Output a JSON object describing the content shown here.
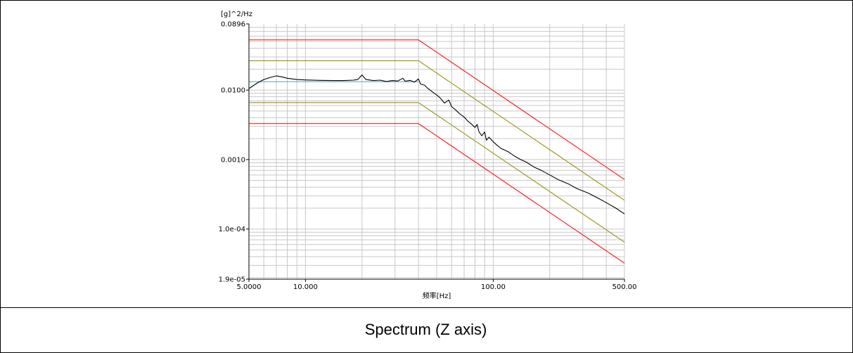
{
  "chart_data": {
    "type": "line",
    "xscale": "log",
    "yscale": "log",
    "xlim": [
      5.0,
      500.0
    ],
    "ylim": [
      1.9e-05,
      0.0896
    ],
    "x_tick_labels": [
      "5.0000",
      "10.000",
      "100.00",
      "500.00"
    ],
    "x_tick_values": [
      5,
      10,
      100,
      500
    ],
    "y_tick_labels": [
      "0.0896",
      "0.0100",
      "0.0010",
      "1.0e-04",
      "1.9e-05"
    ],
    "y_tick_values": [
      0.0896,
      0.01,
      0.001,
      0.0001,
      1.9e-05
    ],
    "xlabel": "频率[Hz]",
    "ylabel": "[g]^2/Hz",
    "grid": true,
    "series": [
      {
        "color": "#ff2020",
        "points": [
          [
            5,
            0.0528
          ],
          [
            40,
            0.0528
          ],
          [
            500,
            0.000517
          ]
        ]
      },
      {
        "color": "#a09a20",
        "points": [
          [
            5,
            0.0264
          ],
          [
            40,
            0.0264
          ],
          [
            500,
            0.000259
          ]
        ]
      },
      {
        "color": "#6fa8b8",
        "points": [
          [
            5,
            0.0132
          ],
          [
            40,
            0.0132
          ]
        ]
      },
      {
        "color": "#a09a20",
        "points": [
          [
            5,
            0.0066
          ],
          [
            40,
            0.0066
          ],
          [
            500,
            6.47e-05
          ]
        ]
      },
      {
        "color": "#ff2020",
        "points": [
          [
            5,
            0.0033
          ],
          [
            40,
            0.0033
          ],
          [
            500,
            3.23e-05
          ]
        ]
      },
      {
        "color": "#000000",
        "points": [
          [
            5,
            0.0105
          ],
          [
            5.5,
            0.0125
          ],
          [
            6,
            0.0142
          ],
          [
            6.5,
            0.0152
          ],
          [
            7,
            0.016
          ],
          [
            7.5,
            0.0155
          ],
          [
            8,
            0.0148
          ],
          [
            9,
            0.0142
          ],
          [
            10,
            0.014
          ],
          [
            12,
            0.0138
          ],
          [
            14,
            0.0137
          ],
          [
            16,
            0.0137
          ],
          [
            18,
            0.0139
          ],
          [
            19,
            0.0142
          ],
          [
            20,
            0.0165
          ],
          [
            21,
            0.0142
          ],
          [
            23,
            0.0137
          ],
          [
            25,
            0.0139
          ],
          [
            27,
            0.0133
          ],
          [
            29,
            0.0137
          ],
          [
            31,
            0.0135
          ],
          [
            33,
            0.0148
          ],
          [
            34,
            0.0134
          ],
          [
            36,
            0.0138
          ],
          [
            38,
            0.013
          ],
          [
            40,
            0.0145
          ],
          [
            41,
            0.0122
          ],
          [
            43,
            0.0118
          ],
          [
            45,
            0.0105
          ],
          [
            48,
            0.0092
          ],
          [
            50,
            0.0085
          ],
          [
            52,
            0.0078
          ],
          [
            55,
            0.0065
          ],
          [
            58,
            0.0072
          ],
          [
            60,
            0.0058
          ],
          [
            63,
            0.0052
          ],
          [
            66,
            0.0046
          ],
          [
            70,
            0.0041
          ],
          [
            73,
            0.0036
          ],
          [
            76,
            0.0033
          ],
          [
            80,
            0.0029
          ],
          [
            82,
            0.0032
          ],
          [
            84,
            0.0025
          ],
          [
            87,
            0.0022
          ],
          [
            90,
            0.0025
          ],
          [
            92,
            0.0019
          ],
          [
            95,
            0.0021
          ],
          [
            100,
            0.0018
          ],
          [
            105,
            0.0016
          ],
          [
            110,
            0.00145
          ],
          [
            120,
            0.0013
          ],
          [
            130,
            0.00112
          ],
          [
            140,
            0.001
          ],
          [
            150,
            0.00092
          ],
          [
            165,
            0.00078
          ],
          [
            180,
            0.0007
          ],
          [
            200,
            0.0006
          ],
          [
            220,
            0.00052
          ],
          [
            250,
            0.00045
          ],
          [
            280,
            0.00038
          ],
          [
            320,
            0.00033
          ],
          [
            360,
            0.00028
          ],
          [
            400,
            0.00024
          ],
          [
            450,
            0.0002
          ],
          [
            500,
            0.000165
          ]
        ]
      }
    ]
  },
  "caption": "Spectrum (Z axis)"
}
